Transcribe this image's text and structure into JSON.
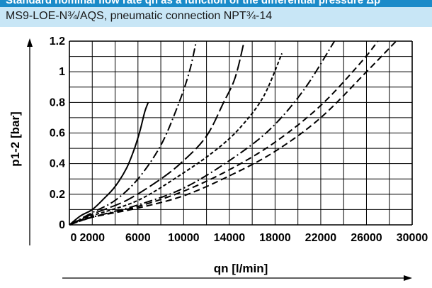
{
  "header": {
    "title": "Standard nominal flow rate qn as a function of the differential pressure Δp",
    "subtitle": "MS9-LOE-N¾/AQS, pneumatic connection NPT¾-14"
  },
  "colors": {
    "header_bg": "#1b8bc9",
    "subheader_bg": "#c8e6f6",
    "line": "#000000"
  },
  "chart_data": {
    "type": "line",
    "xlabel": "qn [l/min]",
    "ylabel": "p1-2 [bar]",
    "xlim": [
      0,
      30000
    ],
    "ylim": [
      0,
      1.2
    ],
    "xticks": [
      0,
      2000,
      6000,
      10000,
      14000,
      18000,
      22000,
      26000,
      30000
    ],
    "xtick_labels": [
      "0",
      "2000",
      "6000",
      "10000",
      "14000",
      "18000",
      "22000",
      "26000",
      "30000"
    ],
    "yticks": [
      0,
      0.2,
      0.4,
      0.6,
      0.8,
      1,
      1.2
    ],
    "ytick_labels": [
      "0",
      "0.2",
      "0.4",
      "0.6",
      "0.8",
      "1",
      "1.2"
    ],
    "grid": true,
    "series": [
      {
        "style": "solid",
        "points": [
          [
            0,
            0
          ],
          [
            1000,
            0.06
          ],
          [
            2000,
            0.1
          ],
          [
            3000,
            0.17
          ],
          [
            4000,
            0.25
          ],
          [
            5000,
            0.37
          ],
          [
            5700,
            0.5
          ],
          [
            6200,
            0.62
          ],
          [
            6600,
            0.74
          ],
          [
            6900,
            0.8
          ]
        ]
      },
      {
        "style": "dashdot",
        "points": [
          [
            0,
            0
          ],
          [
            2000,
            0.08
          ],
          [
            4000,
            0.16
          ],
          [
            6000,
            0.3
          ],
          [
            8000,
            0.52
          ],
          [
            9500,
            0.78
          ],
          [
            10500,
            1.0
          ],
          [
            11100,
            1.2
          ]
        ]
      },
      {
        "style": "longdash",
        "points": [
          [
            0,
            0
          ],
          [
            2000,
            0.07
          ],
          [
            5000,
            0.16
          ],
          [
            8000,
            0.3
          ],
          [
            10000,
            0.42
          ],
          [
            12000,
            0.58
          ],
          [
            13500,
            0.8
          ],
          [
            14500,
            0.96
          ],
          [
            15300,
            1.2
          ]
        ]
      },
      {
        "style": "dotted",
        "points": [
          [
            0,
            0
          ],
          [
            2000,
            0.06
          ],
          [
            6000,
            0.16
          ],
          [
            10000,
            0.34
          ],
          [
            13000,
            0.5
          ],
          [
            15000,
            0.64
          ],
          [
            17000,
            0.84
          ],
          [
            18600,
            1.12
          ]
        ]
      },
      {
        "style": "dashdot",
        "points": [
          [
            0,
            0
          ],
          [
            2000,
            0.05
          ],
          [
            6000,
            0.13
          ],
          [
            10000,
            0.24
          ],
          [
            14000,
            0.42
          ],
          [
            17500,
            0.62
          ],
          [
            20500,
            0.88
          ],
          [
            23200,
            1.2
          ]
        ]
      },
      {
        "style": "dashed",
        "points": [
          [
            0,
            0
          ],
          [
            2000,
            0.05
          ],
          [
            6000,
            0.12
          ],
          [
            10000,
            0.22
          ],
          [
            14000,
            0.36
          ],
          [
            18000,
            0.54
          ],
          [
            22000,
            0.78
          ],
          [
            25500,
            1.06
          ],
          [
            27000,
            1.2
          ]
        ]
      },
      {
        "style": "dashed",
        "points": [
          [
            0,
            0
          ],
          [
            2000,
            0.05
          ],
          [
            6000,
            0.11
          ],
          [
            10000,
            0.19
          ],
          [
            14000,
            0.32
          ],
          [
            18000,
            0.48
          ],
          [
            22000,
            0.7
          ],
          [
            26000,
            1.0
          ],
          [
            28600,
            1.2
          ]
        ]
      }
    ]
  }
}
